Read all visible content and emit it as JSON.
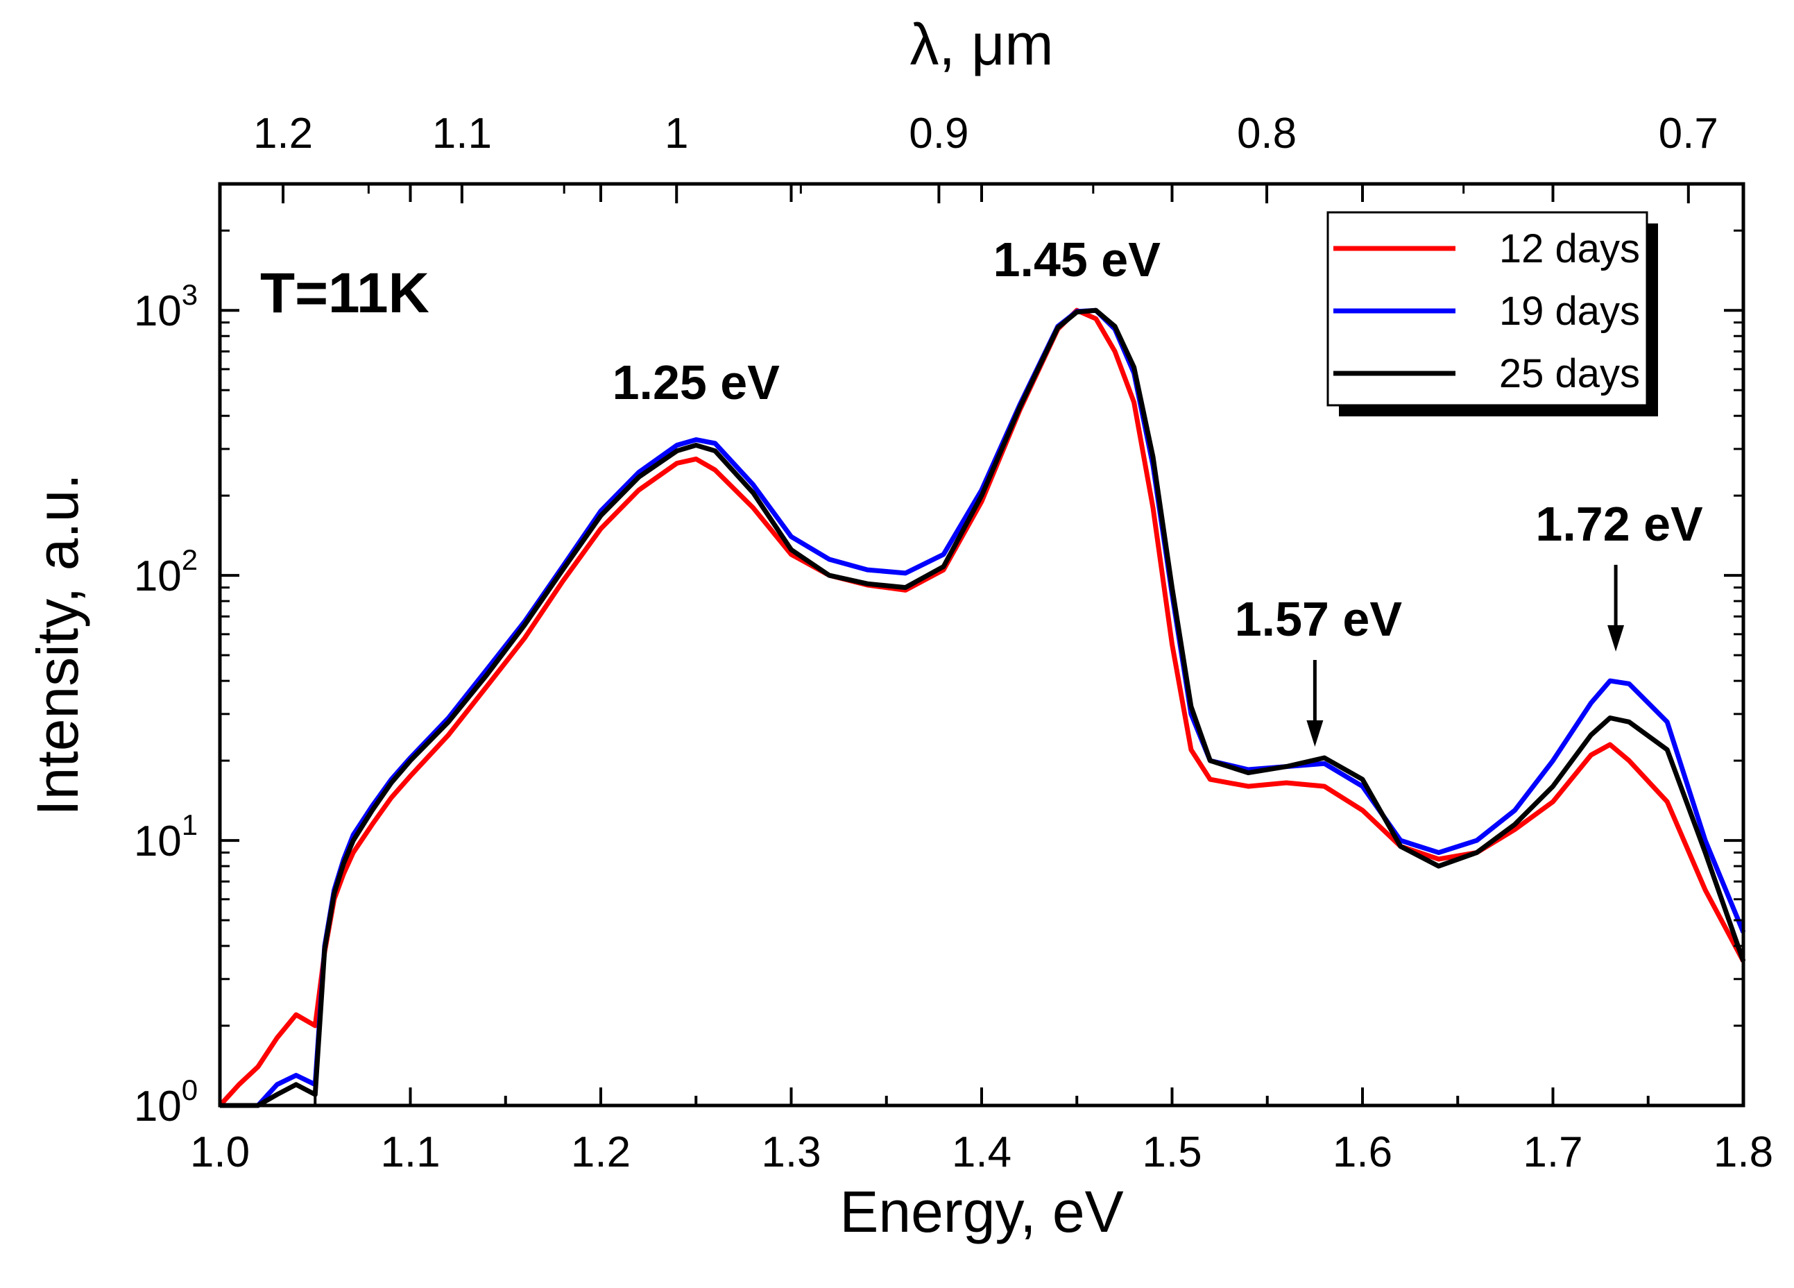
{
  "chart_data": {
    "type": "line",
    "title": "",
    "xlabel": "Energy, eV",
    "ylabel": "Intensity, a.u.",
    "top_xlabel": "λ, μm",
    "xlim": [
      1.0,
      1.8
    ],
    "ylim": [
      1,
      3000
    ],
    "yscale": "log",
    "x_ticks": [
      "1.0",
      "1.1",
      "1.2",
      "1.3",
      "1.4",
      "1.5",
      "1.6",
      "1.7",
      "1.8"
    ],
    "y_ticks": [
      {
        "base": "10",
        "exp": "0",
        "value": 1
      },
      {
        "base": "10",
        "exp": "1",
        "value": 10
      },
      {
        "base": "10",
        "exp": "2",
        "value": 100
      },
      {
        "base": "10",
        "exp": "3",
        "value": 1000
      }
    ],
    "top_ticks": [
      {
        "label": "1.2",
        "value": 1.2
      },
      {
        "label": "1.1",
        "value": 1.1
      },
      {
        "label": "1",
        "value": 1.0
      },
      {
        "label": "0.9",
        "value": 0.9
      },
      {
        "label": "0.8",
        "value": 0.8
      },
      {
        "label": "0.7",
        "value": 0.7
      }
    ],
    "top_minor_ticks": [
      1.15,
      1.05,
      0.95,
      0.85,
      0.75
    ],
    "annotation_text": "T=11K",
    "peaks": [
      {
        "label": "1.25 eV",
        "x": 1.25,
        "arrow": false
      },
      {
        "label": "1.45 eV",
        "x": 1.45,
        "arrow": false
      },
      {
        "label": "1.57 eV",
        "x": 1.575,
        "arrow": true,
        "arrow_to": 21
      },
      {
        "label": "1.72 eV",
        "x": 1.733,
        "arrow": true,
        "arrow_to": 48
      }
    ],
    "legend_position": "top-right",
    "series": [
      {
        "name": "12 days",
        "color": "#ff0000",
        "x": [
          1.0,
          1.01,
          1.02,
          1.03,
          1.04,
          1.05,
          1.055,
          1.06,
          1.065,
          1.07,
          1.08,
          1.09,
          1.1,
          1.12,
          1.14,
          1.16,
          1.18,
          1.2,
          1.22,
          1.24,
          1.25,
          1.26,
          1.28,
          1.3,
          1.32,
          1.34,
          1.36,
          1.38,
          1.4,
          1.42,
          1.44,
          1.45,
          1.46,
          1.47,
          1.48,
          1.49,
          1.5,
          1.51,
          1.52,
          1.54,
          1.56,
          1.58,
          1.6,
          1.62,
          1.64,
          1.66,
          1.68,
          1.7,
          1.72,
          1.73,
          1.74,
          1.76,
          1.78,
          1.8
        ],
        "values": [
          1.0,
          1.2,
          1.4,
          1.8,
          2.2,
          2.0,
          3.8,
          6.0,
          7.5,
          9.0,
          11.5,
          14.5,
          17.5,
          25,
          38,
          58,
          95,
          150,
          210,
          265,
          275,
          250,
          180,
          120,
          100,
          92,
          88,
          105,
          190,
          420,
          850,
          1000,
          930,
          700,
          450,
          180,
          55,
          22,
          17,
          16,
          16.5,
          16,
          13,
          9.5,
          8.5,
          9,
          11,
          14,
          21,
          23,
          20,
          14,
          6.5,
          3.5
        ]
      },
      {
        "name": "19 days",
        "color": "#0000ff",
        "x": [
          1.0,
          1.01,
          1.02,
          1.03,
          1.04,
          1.05,
          1.055,
          1.06,
          1.065,
          1.07,
          1.08,
          1.09,
          1.1,
          1.12,
          1.14,
          1.16,
          1.18,
          1.2,
          1.22,
          1.24,
          1.25,
          1.26,
          1.28,
          1.3,
          1.32,
          1.34,
          1.36,
          1.38,
          1.4,
          1.42,
          1.44,
          1.45,
          1.46,
          1.47,
          1.48,
          1.49,
          1.5,
          1.51,
          1.52,
          1.54,
          1.56,
          1.58,
          1.6,
          1.62,
          1.64,
          1.66,
          1.68,
          1.7,
          1.72,
          1.73,
          1.74,
          1.76,
          1.78,
          1.8
        ],
        "values": [
          0.9,
          1.0,
          1.0,
          1.2,
          1.3,
          1.2,
          4.0,
          6.5,
          8.5,
          10.5,
          13.5,
          17,
          20.5,
          29,
          44,
          67,
          108,
          175,
          245,
          310,
          325,
          315,
          220,
          140,
          115,
          105,
          102,
          120,
          210,
          440,
          870,
          990,
          1000,
          850,
          580,
          260,
          85,
          30,
          20,
          18.5,
          19,
          19.5,
          16,
          10,
          9,
          10,
          13,
          20,
          33,
          40,
          39,
          28,
          10,
          4.5
        ]
      },
      {
        "name": "25 days",
        "color": "#000000",
        "x": [
          1.0,
          1.01,
          1.02,
          1.03,
          1.04,
          1.05,
          1.055,
          1.06,
          1.065,
          1.07,
          1.08,
          1.09,
          1.1,
          1.12,
          1.14,
          1.16,
          1.18,
          1.2,
          1.22,
          1.24,
          1.25,
          1.26,
          1.28,
          1.3,
          1.32,
          1.34,
          1.36,
          1.38,
          1.4,
          1.42,
          1.44,
          1.45,
          1.46,
          1.47,
          1.48,
          1.49,
          1.5,
          1.51,
          1.52,
          1.54,
          1.56,
          1.58,
          1.6,
          1.62,
          1.64,
          1.66,
          1.68,
          1.7,
          1.72,
          1.73,
          1.74,
          1.76,
          1.78,
          1.8
        ],
        "values": [
          0.9,
          0.9,
          1.0,
          1.1,
          1.2,
          1.1,
          3.9,
          6.3,
          8.2,
          10.0,
          13,
          16.5,
          20,
          28,
          42,
          65,
          105,
          168,
          235,
          295,
          310,
          295,
          205,
          125,
          100,
          93,
          90,
          108,
          200,
          430,
          860,
          985,
          1000,
          870,
          610,
          280,
          90,
          32,
          20,
          18,
          19,
          20.5,
          17,
          9.5,
          8,
          9,
          11.5,
          16,
          25,
          29,
          28,
          22,
          9,
          3.5
        ]
      }
    ]
  }
}
